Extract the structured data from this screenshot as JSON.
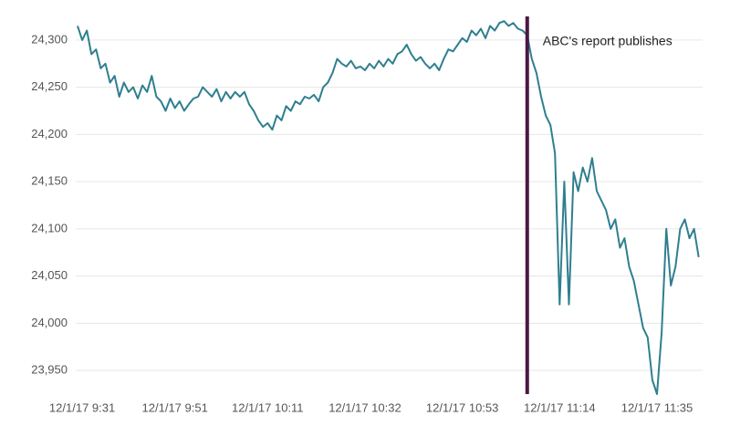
{
  "chart_data": {
    "type": "line",
    "categories": [
      null,
      "12/1/17 9:31",
      null,
      null,
      null,
      null,
      null,
      null,
      null,
      null,
      null,
      null,
      null,
      null,
      null,
      null,
      null,
      null,
      null,
      null,
      null,
      "12/1/17 9:51",
      null,
      null,
      null,
      null,
      null,
      null,
      null,
      null,
      null,
      null,
      null,
      null,
      null,
      null,
      null,
      null,
      null,
      null,
      null,
      "12/1/17 10:11",
      null,
      null,
      null,
      null,
      null,
      null,
      null,
      null,
      null,
      null,
      null,
      null,
      null,
      null,
      null,
      null,
      null,
      null,
      null,
      null,
      "12/1/17 10:32",
      null,
      null,
      null,
      null,
      null,
      null,
      null,
      null,
      null,
      null,
      null,
      null,
      null,
      null,
      null,
      null,
      null,
      null,
      null,
      null,
      "12/1/17 10:53",
      null,
      null,
      null,
      null,
      null,
      null,
      null,
      null,
      null,
      null,
      null,
      null,
      null,
      null,
      null,
      null,
      null,
      null,
      null,
      null,
      "12/1/17 11:14",
      null,
      null,
      null,
      null,
      null,
      null,
      null,
      null,
      null,
      null,
      null,
      null,
      null,
      null,
      null,
      null,
      null,
      null,
      null,
      null,
      "12/1/17 11:35",
      null,
      null,
      null,
      null,
      null,
      null,
      null,
      null,
      null
    ],
    "values": [
      24315,
      24300,
      24310,
      24285,
      24290,
      24270,
      24275,
      24255,
      24262,
      24240,
      24255,
      24245,
      24250,
      24238,
      24252,
      24245,
      24262,
      24240,
      24235,
      24225,
      24238,
      24228,
      24235,
      24225,
      24232,
      24238,
      24240,
      24250,
      24245,
      24240,
      24248,
      24235,
      24245,
      24238,
      24245,
      24240,
      24245,
      24232,
      24225,
      24215,
      24208,
      24212,
      24205,
      24220,
      24215,
      24230,
      24225,
      24235,
      24232,
      24240,
      24238,
      24242,
      24235,
      24250,
      24255,
      24265,
      24280,
      24275,
      24272,
      24278,
      24270,
      24272,
      24268,
      24275,
      24270,
      24278,
      24272,
      24280,
      24275,
      24285,
      24288,
      24295,
      24285,
      24278,
      24282,
      24275,
      24270,
      24275,
      24268,
      24280,
      24290,
      24288,
      24295,
      24302,
      24298,
      24310,
      24305,
      24312,
      24302,
      24315,
      24310,
      24318,
      24320,
      24315,
      24318,
      24312,
      24310,
      24305,
      24280,
      24265,
      24240,
      24220,
      24210,
      24180,
      24020,
      24150,
      24020,
      24160,
      24140,
      24165,
      24150,
      24175,
      24140,
      24130,
      24120,
      24100,
      24110,
      24080,
      24090,
      24060,
      24045,
      24020,
      23995,
      23985,
      23940,
      23925,
      23990,
      24100,
      24040,
      24060,
      24100,
      24110,
      24090,
      24100,
      24070
    ],
    "color": "#2f7f8f",
    "ylim": [
      23925,
      24325
    ],
    "yticks": [
      {
        "value": 23950,
        "label": "23,950"
      },
      {
        "value": 24000,
        "label": "24,000"
      },
      {
        "value": 24050,
        "label": "24,050"
      },
      {
        "value": 24100,
        "label": "24,100"
      },
      {
        "value": 24150,
        "label": "24,150"
      },
      {
        "value": 24200,
        "label": "24,200"
      },
      {
        "value": 24250,
        "label": "24,250"
      },
      {
        "value": 24300,
        "label": "24,300"
      }
    ],
    "grid": true,
    "annotation": {
      "text": "ABC's report publishes",
      "x_index": 97,
      "color": "#4a1942"
    }
  }
}
